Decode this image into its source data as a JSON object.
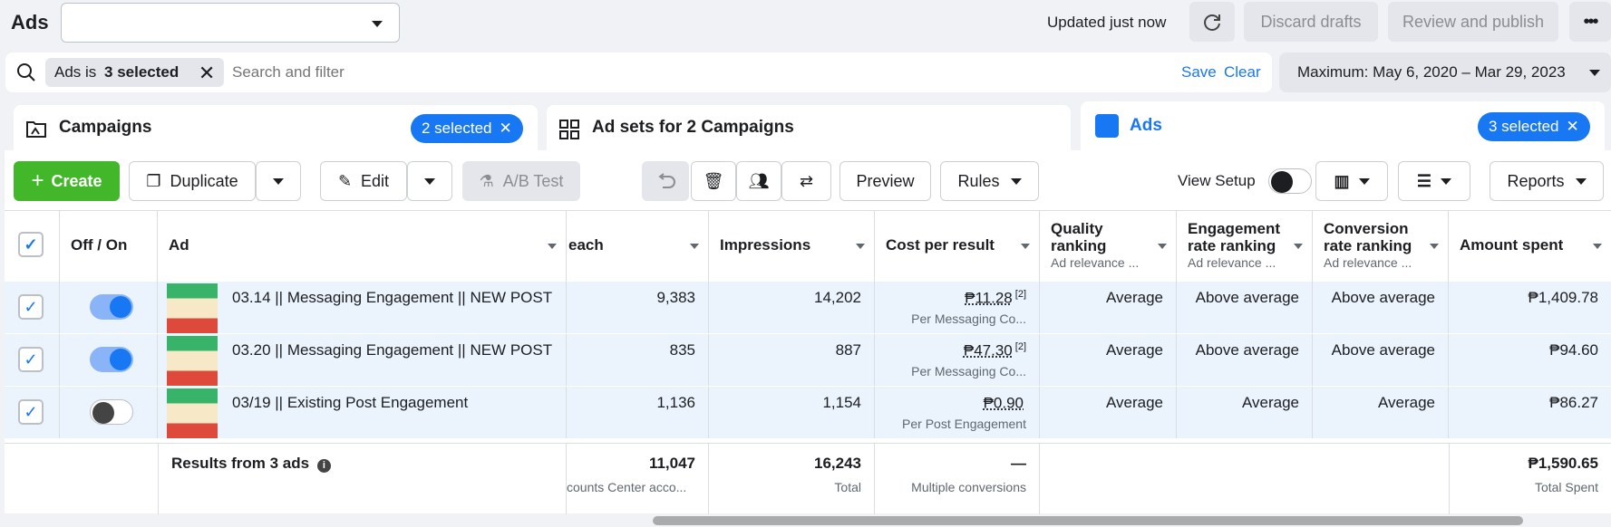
{
  "header": {
    "title": "Ads",
    "account_value": "",
    "updated_text": "Updated just now",
    "discard_label": "Discard drafts",
    "review_label": "Review and publish"
  },
  "filter": {
    "chip_prefix": "Ads is ",
    "chip_value": "3 selected",
    "placeholder": "Search and filter",
    "save_label": "Save",
    "clear_label": "Clear",
    "date_range": "Maximum: May 6, 2020 – Mar 29, 2023"
  },
  "tabs": [
    {
      "label": "Campaigns",
      "pill": "2 selected"
    },
    {
      "label": "Ad sets for 2 Campaigns"
    },
    {
      "label": "Ads",
      "pill": "3 selected"
    }
  ],
  "toolbar": {
    "create": "Create",
    "duplicate": "Duplicate",
    "edit": "Edit",
    "ab_test": "A/B Test",
    "preview": "Preview",
    "rules": "Rules",
    "view_setup": "View Setup",
    "reports": "Reports"
  },
  "columns": {
    "off_on": "Off / On",
    "ad": "Ad",
    "reach": "each",
    "impressions": "Impressions",
    "cost": "Cost per result",
    "quality": "Quality ranking",
    "engagement": "Engagement rate ranking",
    "conversion": "Conversion rate ranking",
    "rank_sub": "Ad relevance ...",
    "amount": "Amount spent"
  },
  "rows": [
    {
      "ad": "03.14 || Messaging Engagement || NEW POST",
      "on": true,
      "reach": "9,383",
      "impressions": "14,202",
      "cost": "₱11.28",
      "cost_note": "[2]",
      "cost_sub": "Per Messaging Co...",
      "quality": "Average",
      "engagement": "Above average",
      "conversion": "Above average",
      "amount": "₱1,409.78"
    },
    {
      "ad": "03.20 || Messaging Engagement || NEW POST",
      "on": true,
      "reach": "835",
      "impressions": "887",
      "cost": "₱47.30",
      "cost_note": "[2]",
      "cost_sub": "Per Messaging Co...",
      "quality": "Average",
      "engagement": "Above average",
      "conversion": "Above average",
      "amount": "₱94.60"
    },
    {
      "ad": "03/19 || Existing Post Engagement",
      "on": false,
      "reach": "1,136",
      "impressions": "1,154",
      "cost": "₱0.90",
      "cost_note": "",
      "cost_sub": "Per Post Engagement",
      "quality": "Average",
      "engagement": "Average",
      "conversion": "Average",
      "amount": "₱86.27"
    }
  ],
  "footer": {
    "label": "Results from 3 ads",
    "reach": "11,047",
    "reach_sub": "counts Center acco...",
    "impressions": "16,243",
    "impressions_sub": "Total",
    "cost": "—",
    "cost_sub": "Multiple conversions",
    "amount": "₱1,590.65",
    "amount_sub": "Total Spent"
  },
  "colors": {
    "accent": "#1877f2",
    "create": "#42b72a",
    "selected_row": "#ebf3fd"
  }
}
